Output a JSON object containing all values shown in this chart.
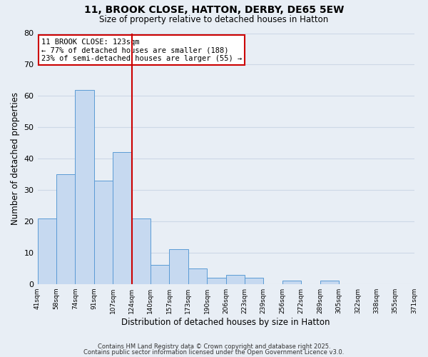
{
  "title": "11, BROOK CLOSE, HATTON, DERBY, DE65 5EW",
  "subtitle": "Size of property relative to detached houses in Hatton",
  "xlabel": "Distribution of detached houses by size in Hatton",
  "ylabel": "Number of detached properties",
  "bar_values": [
    21,
    35,
    62,
    33,
    42,
    21,
    6,
    11,
    5,
    2,
    3,
    2,
    0,
    1,
    0,
    1,
    0,
    0,
    0,
    0
  ],
  "all_labels": [
    "41sqm",
    "58sqm",
    "74sqm",
    "91sqm",
    "107sqm",
    "124sqm",
    "140sqm",
    "157sqm",
    "173sqm",
    "190sqm",
    "206sqm",
    "223sqm",
    "239sqm",
    "256sqm",
    "272sqm",
    "289sqm",
    "305sqm",
    "322sqm",
    "338sqm",
    "355sqm",
    "371sqm"
  ],
  "bar_color": "#c6d9f0",
  "bar_edge_color": "#5b9bd5",
  "n_bars": 20,
  "red_line_bar_index": 4,
  "ylim": [
    0,
    80
  ],
  "yticks": [
    0,
    10,
    20,
    30,
    40,
    50,
    60,
    70,
    80
  ],
  "annotation_title": "11 BROOK CLOSE: 123sqm",
  "annotation_line1": "← 77% of detached houses are smaller (188)",
  "annotation_line2": "23% of semi-detached houses are larger (55) →",
  "annotation_box_color": "#ffffff",
  "annotation_box_edge": "#cc0000",
  "red_line_color": "#cc0000",
  "grid_color": "#cdd8e6",
  "background_color": "#e8eef5",
  "footer1": "Contains HM Land Registry data © Crown copyright and database right 2025.",
  "footer2": "Contains public sector information licensed under the Open Government Licence v3.0."
}
